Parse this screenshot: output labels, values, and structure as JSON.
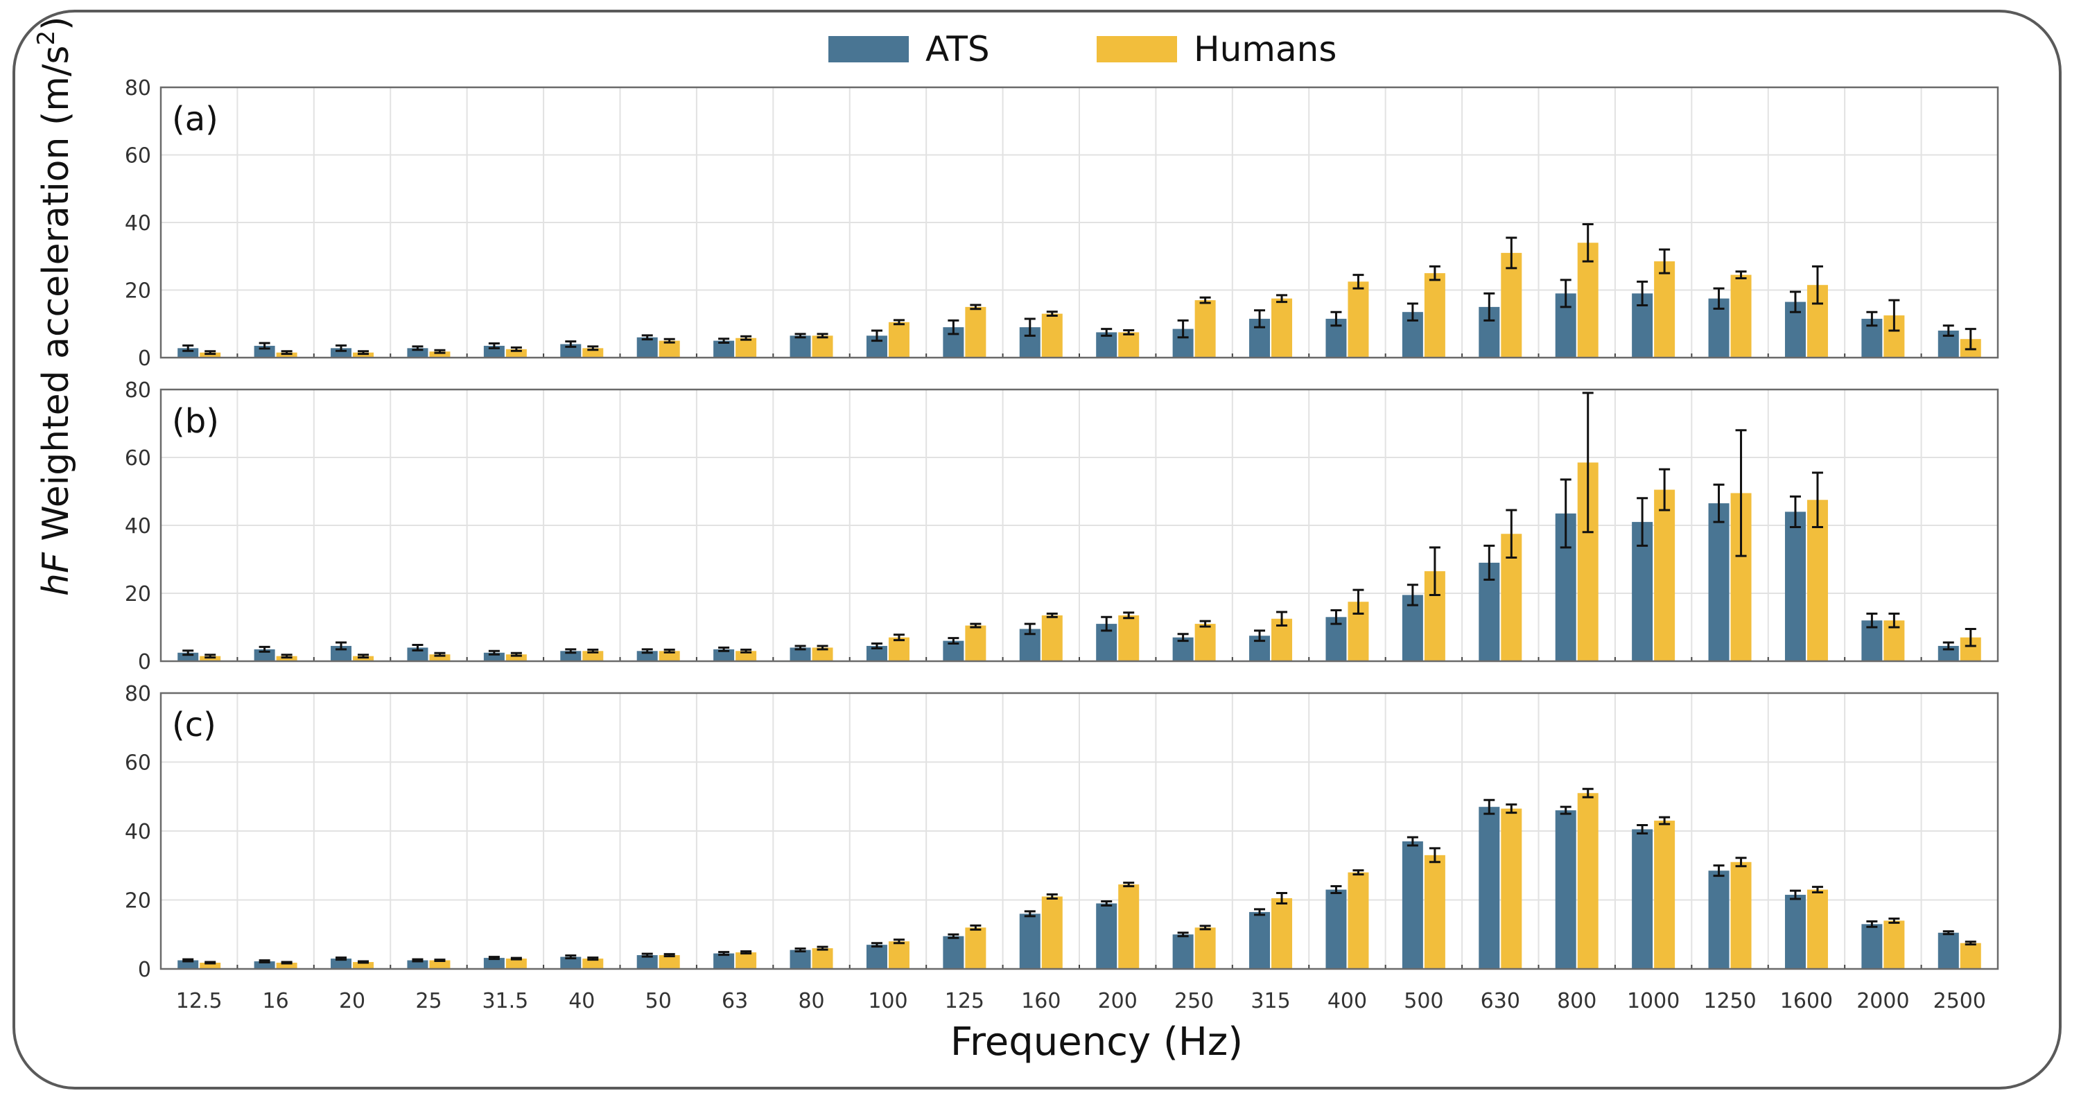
{
  "chart_data": {
    "type": "bar",
    "xlabel": "Frequency (Hz)",
    "ylabel_italic": "hF",
    "ylabel_main": " Weighted acceleration (m/s",
    "ylabel_sup": "2",
    "ylabel_end": ")",
    "ylim": [
      0,
      80
    ],
    "yticks": [
      "0",
      "20",
      "40",
      "60",
      "80"
    ],
    "colors": {
      "ATS": "#497593",
      "Humans": "#f2be3c"
    },
    "legend": [
      {
        "name": "ATS",
        "color": "#497593"
      },
      {
        "name": "Humans",
        "color": "#f2be3c"
      }
    ],
    "categories": [
      "12.5",
      "16",
      "20",
      "25",
      "31.5",
      "40",
      "50",
      "63",
      "80",
      "100",
      "125",
      "160",
      "200",
      "250",
      "315",
      "400",
      "500",
      "630",
      "800",
      "1000",
      "1250",
      "1600",
      "2000",
      "2500"
    ],
    "panels": [
      {
        "label": "(a)",
        "series": [
          {
            "name": "ATS",
            "values": [
              2.8,
              3.5,
              2.8,
              2.8,
              3.5,
              4.0,
              6.0,
              5.0,
              6.5,
              6.5,
              9.0,
              9.0,
              7.5,
              8.5,
              11.5,
              11.5,
              13.5,
              15.0,
              19.0,
              19.0,
              17.5,
              16.5,
              11.5,
              8.0
            ],
            "errors": [
              0.8,
              0.8,
              0.8,
              0.5,
              0.7,
              0.8,
              0.6,
              0.6,
              0.5,
              1.5,
              2.0,
              2.5,
              1.0,
              2.5,
              2.5,
              2.0,
              2.5,
              4.0,
              4.0,
              3.5,
              3.0,
              3.0,
              2.0,
              1.5
            ]
          },
          {
            "name": "Humans",
            "values": [
              1.5,
              1.5,
              1.5,
              1.8,
              2.5,
              2.8,
              5.0,
              5.8,
              6.5,
              10.5,
              15.0,
              13.0,
              7.5,
              17.0,
              17.5,
              22.5,
              25.0,
              31.0,
              34.0,
              28.5,
              24.5,
              21.5,
              12.5,
              5.5
            ]
          },
          {
            "name": "Humans_err",
            "values": [
              0.4,
              0.4,
              0.4,
              0.4,
              0.5,
              0.5,
              0.5,
              0.5,
              0.5,
              0.6,
              0.6,
              0.6,
              0.6,
              0.8,
              1.0,
              2.0,
              2.0,
              4.5,
              5.5,
              3.5,
              1.0,
              5.5,
              4.5,
              3.0
            ]
          }
        ]
      },
      {
        "label": "(b)",
        "series": [
          {
            "name": "ATS",
            "values": [
              2.5,
              3.5,
              4.5,
              4.0,
              2.5,
              3.0,
              3.0,
              3.5,
              4.0,
              4.5,
              6.0,
              9.5,
              11.0,
              7.0,
              7.5,
              13.0,
              19.5,
              29.0,
              43.5,
              41.0,
              46.5,
              44.0,
              12.0,
              4.5
            ],
            "errors": [
              0.6,
              0.7,
              1.0,
              0.8,
              0.5,
              0.5,
              0.5,
              0.5,
              0.5,
              0.7,
              0.8,
              1.5,
              2.0,
              1.0,
              1.5,
              2.0,
              3.0,
              5.0,
              10.0,
              7.0,
              5.5,
              4.5,
              2.0,
              1.0
            ]
          },
          {
            "name": "Humans",
            "values": [
              1.5,
              1.5,
              1.5,
              2.0,
              2.0,
              3.0,
              3.0,
              3.0,
              4.0,
              7.0,
              10.5,
              13.5,
              13.5,
              11.0,
              12.5,
              17.5,
              26.5,
              37.5,
              58.5,
              50.5,
              49.5,
              47.5,
              12.0,
              7.0
            ]
          },
          {
            "name": "Humans_err",
            "values": [
              0.4,
              0.4,
              0.4,
              0.4,
              0.4,
              0.4,
              0.4,
              0.4,
              0.5,
              0.8,
              0.5,
              0.5,
              0.8,
              0.8,
              2.0,
              3.5,
              7.0,
              7.0,
              20.5,
              6.0,
              18.5,
              8.0,
              2.0,
              2.5
            ]
          }
        ]
      },
      {
        "label": "(c)",
        "series": [
          {
            "name": "ATS",
            "values": [
              2.5,
              2.2,
              3.0,
              2.5,
              3.2,
              3.5,
              4.0,
              4.5,
              5.5,
              7.0,
              9.5,
              16.0,
              19.0,
              10.0,
              16.5,
              23.0,
              37.0,
              47.0,
              46.0,
              40.5,
              28.5,
              21.5,
              13.0,
              10.5
            ],
            "errors": [
              0.3,
              0.3,
              0.3,
              0.3,
              0.3,
              0.4,
              0.4,
              0.4,
              0.4,
              0.5,
              0.5,
              0.7,
              0.6,
              0.5,
              0.8,
              1.0,
              1.2,
              2.0,
              1.0,
              1.2,
              1.5,
              1.2,
              0.8,
              0.4
            ]
          },
          {
            "name": "Humans",
            "values": [
              1.8,
              1.8,
              2.0,
              2.5,
              3.0,
              3.0,
              4.0,
              4.8,
              6.0,
              8.0,
              12.0,
              21.0,
              24.5,
              12.0,
              20.5,
              28.0,
              33.0,
              46.5,
              51.0,
              43.0,
              31.0,
              23.0,
              14.0,
              7.5
            ]
          },
          {
            "name": "Humans_err",
            "values": [
              0.2,
              0.2,
              0.2,
              0.2,
              0.2,
              0.3,
              0.3,
              0.3,
              0.4,
              0.5,
              0.6,
              0.6,
              0.5,
              0.5,
              1.5,
              0.6,
              2.0,
              1.2,
              1.2,
              1.0,
              1.2,
              0.8,
              0.6,
              0.4
            ]
          }
        ]
      }
    ]
  }
}
